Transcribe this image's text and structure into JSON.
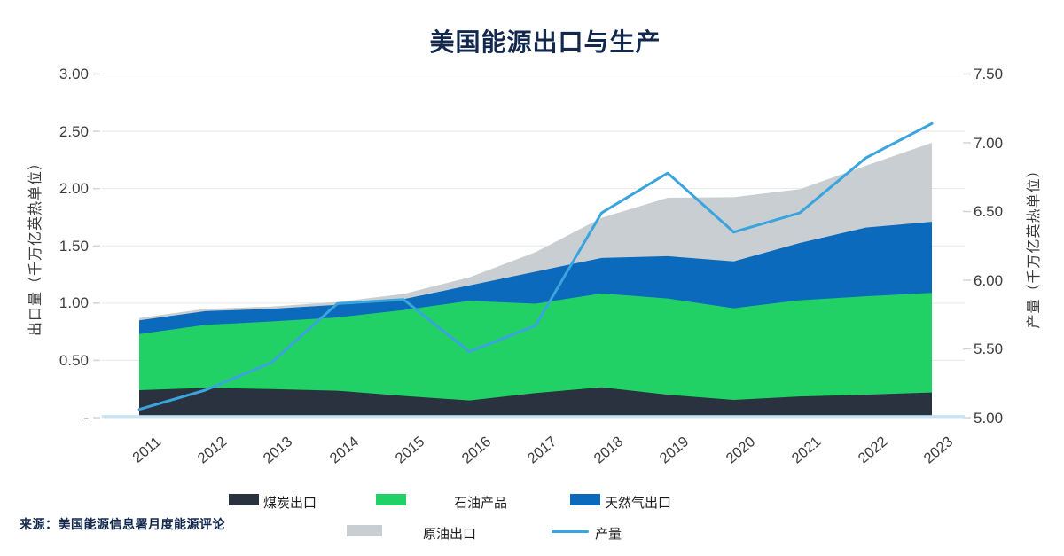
{
  "chart": {
    "title": "美国能源出口与生产",
    "source_note": "来源：美国能源信息署月度能源评论"
  },
  "legend": {
    "items": [
      {
        "label": "煤炭出口",
        "type": "box",
        "color": "#29323e"
      },
      {
        "label": "石油产品",
        "type": "box",
        "color": "#22d166"
      },
      {
        "label": "天然气出口",
        "type": "box",
        "color": "#0c6abc"
      },
      {
        "label": "原油出口",
        "type": "box",
        "color": "#c9ced2"
      },
      {
        "label": "产量",
        "type": "line",
        "color": "#3aa4dc"
      }
    ]
  },
  "chart_data": {
    "type": "area",
    "title": "美国能源出口与生产",
    "categories": [
      "2011",
      "2012",
      "2013",
      "2014",
      "2015",
      "2016",
      "2017",
      "2018",
      "2019",
      "2020",
      "2021",
      "2022",
      "2023"
    ],
    "stack_series": [
      {
        "name": "煤炭出口",
        "color": "#29323e",
        "values": [
          0.24,
          0.26,
          0.25,
          0.235,
          0.19,
          0.15,
          0.215,
          0.265,
          0.2,
          0.155,
          0.185,
          0.2,
          0.22
        ]
      },
      {
        "name": "石油产品",
        "color": "#22d166",
        "values": [
          0.49,
          0.55,
          0.59,
          0.64,
          0.75,
          0.87,
          0.78,
          0.82,
          0.84,
          0.8,
          0.84,
          0.86,
          0.87
        ]
      },
      {
        "name": "天然气出口",
        "color": "#0c6abc",
        "values": [
          0.12,
          0.12,
          0.11,
          0.11,
          0.095,
          0.135,
          0.28,
          0.31,
          0.37,
          0.41,
          0.5,
          0.6,
          0.62
        ]
      },
      {
        "name": "原油出口",
        "color": "#c9ced2",
        "values": [
          0.02,
          0.02,
          0.02,
          0.025,
          0.045,
          0.07,
          0.17,
          0.35,
          0.51,
          0.56,
          0.47,
          0.54,
          0.69
        ]
      }
    ],
    "line_series": {
      "name": "产量",
      "color": "#3aa4dc",
      "values": [
        5.06,
        5.2,
        5.4,
        5.83,
        5.86,
        5.48,
        5.67,
        6.49,
        6.78,
        6.35,
        6.49,
        6.89,
        7.14
      ]
    },
    "y_left": {
      "label": "出口量（千万亿英热单位）",
      "min": 0,
      "max": 3,
      "ticks": [
        {
          "label": "3.00",
          "value": 3.0
        },
        {
          "label": "2.50",
          "value": 2.5
        },
        {
          "label": "2.00",
          "value": 2.0
        },
        {
          "label": "1.50",
          "value": 1.5
        },
        {
          "label": "1.00",
          "value": 1.0
        },
        {
          "label": "0.50",
          "value": 0.5
        },
        {
          "label": "-",
          "value": 0.0
        }
      ]
    },
    "y_right": {
      "label": "产量（千万亿英热单位）",
      "min": 5.0,
      "max": 7.5,
      "ticks": [
        {
          "label": "7.50",
          "value": 7.5
        },
        {
          "label": "7.00",
          "value": 7.0
        },
        {
          "label": "6.50",
          "value": 6.5
        },
        {
          "label": "6.00",
          "value": 6.0
        },
        {
          "label": "5.50",
          "value": 5.5
        },
        {
          "label": "5.00",
          "value": 5.0
        }
      ]
    },
    "grid": "horizontal",
    "legend_position": "bottom"
  }
}
